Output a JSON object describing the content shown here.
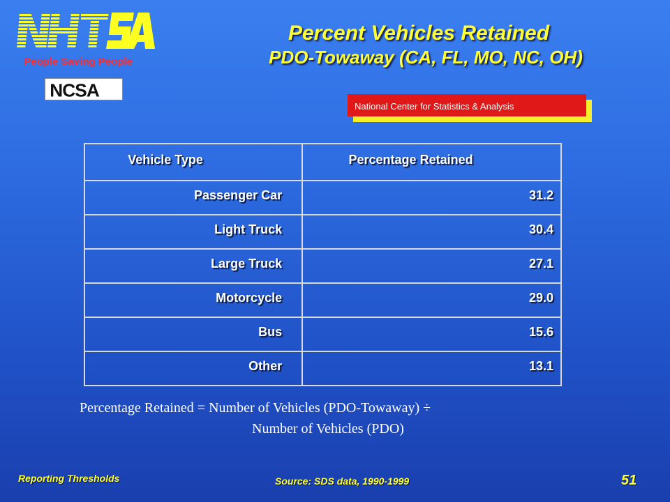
{
  "header": {
    "logo_text": "NHTSA",
    "tagline": "People Saving People",
    "ncsa_logo_text": "NCSA",
    "ncsa_banner": "National Center for Statistics & Analysis",
    "title": "Percent Vehicles Retained",
    "subtitle": "PDO-Towaway (CA, FL, MO, NC, OH)"
  },
  "table": {
    "headers": [
      "Vehicle Type",
      "Percentage Retained"
    ],
    "rows": [
      {
        "type": "Passenger Car",
        "pct": "31.2"
      },
      {
        "type": "Light Truck",
        "pct": "30.4"
      },
      {
        "type": "Large Truck",
        "pct": "27.1"
      },
      {
        "type": "Motorcycle",
        "pct": "29.0"
      },
      {
        "type": "Bus",
        "pct": "15.6"
      },
      {
        "type": "Other",
        "pct": "13.1"
      }
    ]
  },
  "formula": {
    "line1": "Percentage Retained = Number of Vehicles (PDO-Towaway) ÷",
    "line2": "Number of Vehicles (PDO)"
  },
  "footer": {
    "section": "Reporting Thresholds",
    "source": "Source: SDS data, 1990-1999",
    "page_number": "51"
  },
  "colors": {
    "title_yellow": "#ffff33",
    "banner_red": "#e01818",
    "banner_shadow_yellow": "#f4ef2a",
    "tagline_red": "#ff2b2b"
  }
}
